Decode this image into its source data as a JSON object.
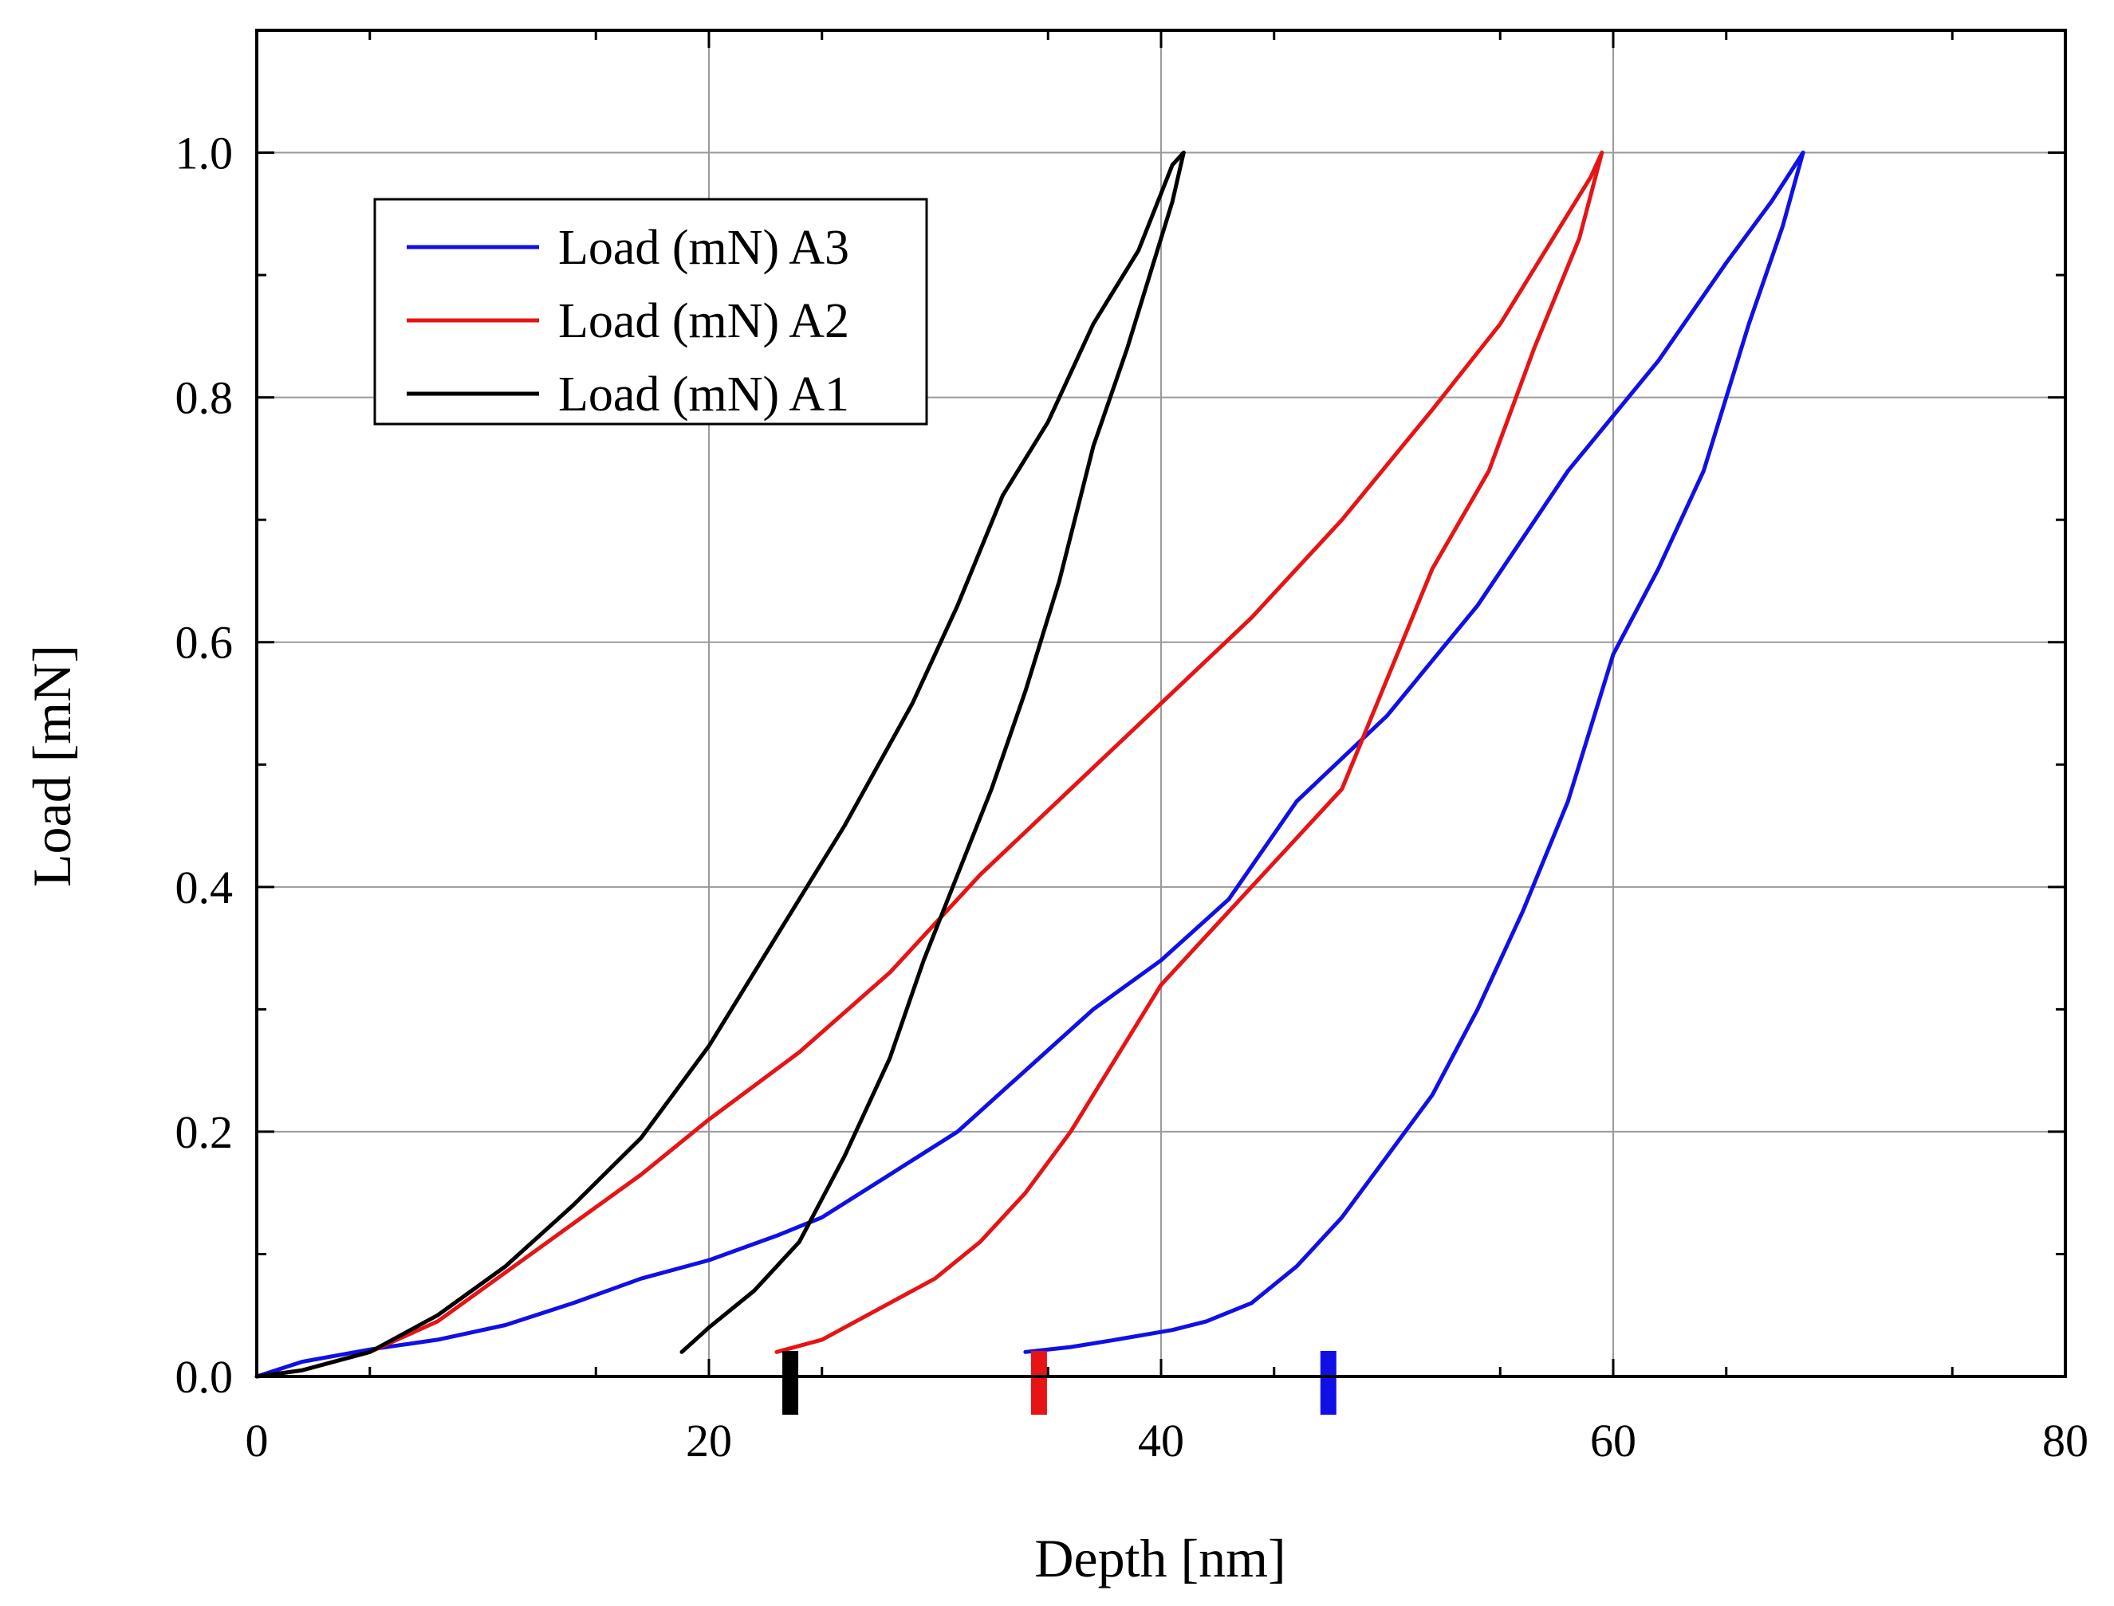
{
  "chart_data": {
    "type": "line",
    "title": "",
    "xlabel": "Depth [nm]",
    "ylabel": "Load [mN]",
    "xlim": [
      0,
      80
    ],
    "ylim": [
      0,
      1.1
    ],
    "x_ticks": [
      "0",
      "20",
      "40",
      "60",
      "80"
    ],
    "y_ticks": [
      "0.0",
      "0.2",
      "0.4",
      "0.6",
      "0.8",
      "1.0"
    ],
    "grid": true,
    "legend_position": "top-left",
    "series": [
      {
        "name": "Load (mN) A3",
        "color": "#1010e6",
        "loading": [
          [
            0,
            0
          ],
          [
            2,
            0.012
          ],
          [
            5,
            0.022
          ],
          [
            8,
            0.03
          ],
          [
            11,
            0.042
          ],
          [
            14,
            0.06
          ],
          [
            17,
            0.08
          ],
          [
            20,
            0.095
          ],
          [
            23,
            0.115
          ],
          [
            25,
            0.13
          ],
          [
            28,
            0.165
          ],
          [
            31,
            0.2
          ],
          [
            34,
            0.25
          ],
          [
            37,
            0.3
          ],
          [
            40,
            0.34
          ],
          [
            43,
            0.39
          ],
          [
            46,
            0.47
          ],
          [
            50,
            0.54
          ],
          [
            54,
            0.63
          ],
          [
            58,
            0.74
          ],
          [
            62,
            0.83
          ],
          [
            65,
            0.91
          ],
          [
            67,
            0.96
          ],
          [
            68.4,
            1.0
          ]
        ],
        "unloading": [
          [
            68.4,
            1.0
          ],
          [
            67.5,
            0.94
          ],
          [
            66,
            0.86
          ],
          [
            64,
            0.74
          ],
          [
            62,
            0.66
          ],
          [
            60,
            0.59
          ],
          [
            58,
            0.47
          ],
          [
            56,
            0.38
          ],
          [
            54,
            0.3
          ],
          [
            52,
            0.23
          ],
          [
            50,
            0.18
          ],
          [
            48,
            0.13
          ],
          [
            46,
            0.09
          ],
          [
            44,
            0.06
          ],
          [
            42,
            0.045
          ],
          [
            40.5,
            0.038
          ],
          [
            38,
            0.03
          ],
          [
            36,
            0.024
          ],
          [
            34,
            0.02
          ]
        ]
      },
      {
        "name": "Load (mN) A2",
        "color": "#e61414",
        "loading": [
          [
            0,
            0
          ],
          [
            2,
            0.005
          ],
          [
            5,
            0.02
          ],
          [
            8,
            0.045
          ],
          [
            11,
            0.085
          ],
          [
            14,
            0.125
          ],
          [
            17,
            0.165
          ],
          [
            20,
            0.21
          ],
          [
            24,
            0.265
          ],
          [
            28,
            0.33
          ],
          [
            32,
            0.41
          ],
          [
            36,
            0.48
          ],
          [
            40,
            0.55
          ],
          [
            44,
            0.62
          ],
          [
            48,
            0.7
          ],
          [
            52,
            0.79
          ],
          [
            55,
            0.86
          ],
          [
            57,
            0.92
          ],
          [
            59,
            0.98
          ],
          [
            59.5,
            1.0
          ]
        ],
        "unloading": [
          [
            59.5,
            1.0
          ],
          [
            58.5,
            0.93
          ],
          [
            56.5,
            0.84
          ],
          [
            54.5,
            0.74
          ],
          [
            52,
            0.66
          ],
          [
            50,
            0.57
          ],
          [
            48,
            0.48
          ],
          [
            46,
            0.44
          ],
          [
            44,
            0.4
          ],
          [
            42,
            0.36
          ],
          [
            40,
            0.32
          ],
          [
            38,
            0.26
          ],
          [
            36,
            0.2
          ],
          [
            34,
            0.15
          ],
          [
            32,
            0.11
          ],
          [
            30,
            0.08
          ],
          [
            27,
            0.05
          ],
          [
            25,
            0.03
          ],
          [
            23,
            0.02
          ]
        ]
      },
      {
        "name": "Load (mN) A1",
        "color": "#000000",
        "loading": [
          [
            0,
            0
          ],
          [
            2,
            0.005
          ],
          [
            5,
            0.02
          ],
          [
            8,
            0.05
          ],
          [
            11,
            0.09
          ],
          [
            14,
            0.14
          ],
          [
            17,
            0.195
          ],
          [
            20,
            0.27
          ],
          [
            23,
            0.36
          ],
          [
            26,
            0.45
          ],
          [
            29,
            0.55
          ],
          [
            31,
            0.63
          ],
          [
            33,
            0.72
          ],
          [
            35,
            0.78
          ],
          [
            37,
            0.86
          ],
          [
            39,
            0.92
          ],
          [
            40.5,
            0.99
          ],
          [
            41,
            1.0
          ]
        ],
        "unloading": [
          [
            41,
            1.0
          ],
          [
            40.5,
            0.96
          ],
          [
            39.5,
            0.9
          ],
          [
            38.5,
            0.84
          ],
          [
            37,
            0.76
          ],
          [
            35.5,
            0.65
          ],
          [
            34,
            0.56
          ],
          [
            32.5,
            0.48
          ],
          [
            31,
            0.41
          ],
          [
            29.5,
            0.34
          ],
          [
            28,
            0.26
          ],
          [
            26,
            0.18
          ],
          [
            24,
            0.11
          ],
          [
            22,
            0.07
          ],
          [
            20,
            0.04
          ],
          [
            18.8,
            0.02
          ]
        ]
      }
    ],
    "markers": [
      {
        "color": "#000000",
        "x": 23.6
      },
      {
        "color": "#e61414",
        "x": 34.6
      },
      {
        "color": "#1010e6",
        "x": 47.4
      }
    ]
  }
}
